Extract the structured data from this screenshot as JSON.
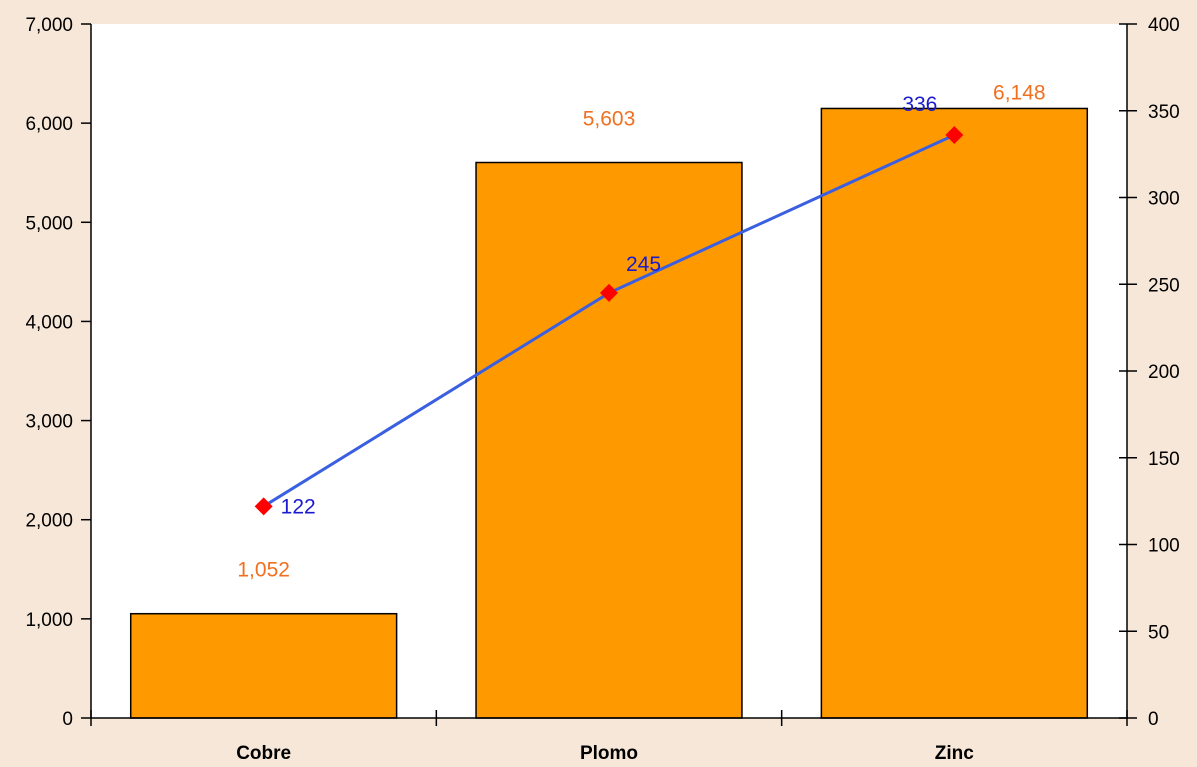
{
  "chart_data": {
    "type": "bar",
    "categories": [
      "Cobre",
      "Plomo",
      "Zinc"
    ],
    "series": [
      {
        "type": "bar",
        "axis": "left",
        "values": [
          1052,
          5603,
          6148
        ],
        "labels": [
          "1,052",
          "5,603",
          "6,148"
        ],
        "color": "#ff9900",
        "label_color": "#f07020"
      },
      {
        "type": "line",
        "axis": "right",
        "values": [
          122,
          245,
          336
        ],
        "labels": [
          "122",
          "245",
          "336"
        ],
        "color": "#3a5fe0",
        "marker_color": "#ff0000",
        "label_color": "#1a1ad0"
      }
    ],
    "y_left": {
      "range": [
        0,
        7000
      ],
      "ticks": [
        0,
        1000,
        2000,
        3000,
        4000,
        5000,
        6000,
        7000
      ],
      "tick_labels": [
        "0",
        "1,000",
        "2,000",
        "3,000",
        "4,000",
        "5,000",
        "6,000",
        "7,000"
      ]
    },
    "y_right": {
      "range": [
        0,
        400
      ],
      "ticks": [
        0,
        50,
        100,
        150,
        200,
        250,
        300,
        350,
        400
      ],
      "tick_labels": [
        "0",
        "50",
        "100",
        "150",
        "200",
        "250",
        "300",
        "350",
        "400"
      ]
    },
    "grid": false,
    "plot_background": "#ffffff",
    "page_background": "#f7e7d8",
    "legend": "none"
  }
}
